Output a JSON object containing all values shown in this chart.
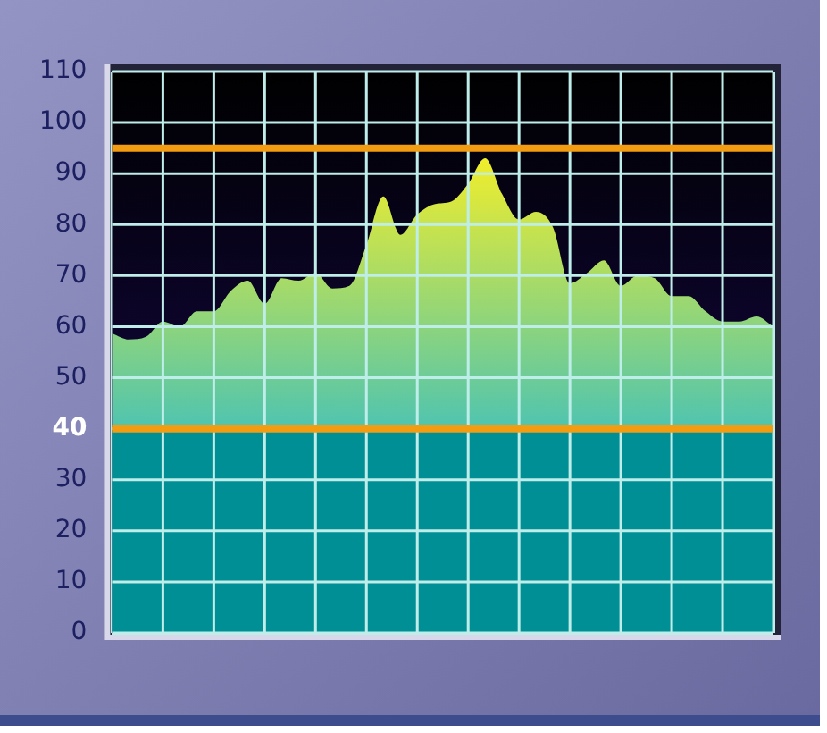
{
  "chart_data": {
    "type": "area",
    "categories": [
      null,
      null,
      null,
      null,
      null,
      null,
      null,
      null,
      null,
      null,
      null,
      null,
      null,
      null,
      null,
      null,
      null,
      null,
      null,
      null,
      null,
      null,
      null,
      null,
      null,
      null,
      null,
      null,
      null,
      null,
      null,
      null,
      null,
      null,
      null,
      null,
      null,
      null,
      null,
      null
    ],
    "series": [
      {
        "color": "#f2ee2a",
        "values": [
          58.7,
          57.5,
          58,
          61,
          60,
          63,
          63,
          67,
          69,
          64.5,
          69.5,
          69,
          70.5,
          67.5,
          68,
          76,
          85.5,
          78,
          82,
          84,
          84.5,
          88,
          93,
          86,
          81,
          82.5,
          79.5,
          68.5,
          70.5,
          73,
          68,
          70,
          69.5,
          66,
          66,
          63,
          61,
          61,
          62,
          60
        ]
      }
    ],
    "ylim": [
      0,
      110
    ],
    "yticks": [
      0,
      10,
      20,
      30,
      40,
      50,
      60,
      70,
      80,
      90,
      100,
      110
    ],
    "ref_lines": [
      {
        "axis": "y",
        "value": 40,
        "color": "#f39c12"
      },
      {
        "axis": "y",
        "value": 95,
        "color": "#f39c12"
      }
    ],
    "bands": [
      {
        "axis": "y",
        "from": 0,
        "to": 40,
        "color": "#008f95"
      }
    ],
    "grid": true,
    "tick_labels": "y",
    "legend": false
  }
}
